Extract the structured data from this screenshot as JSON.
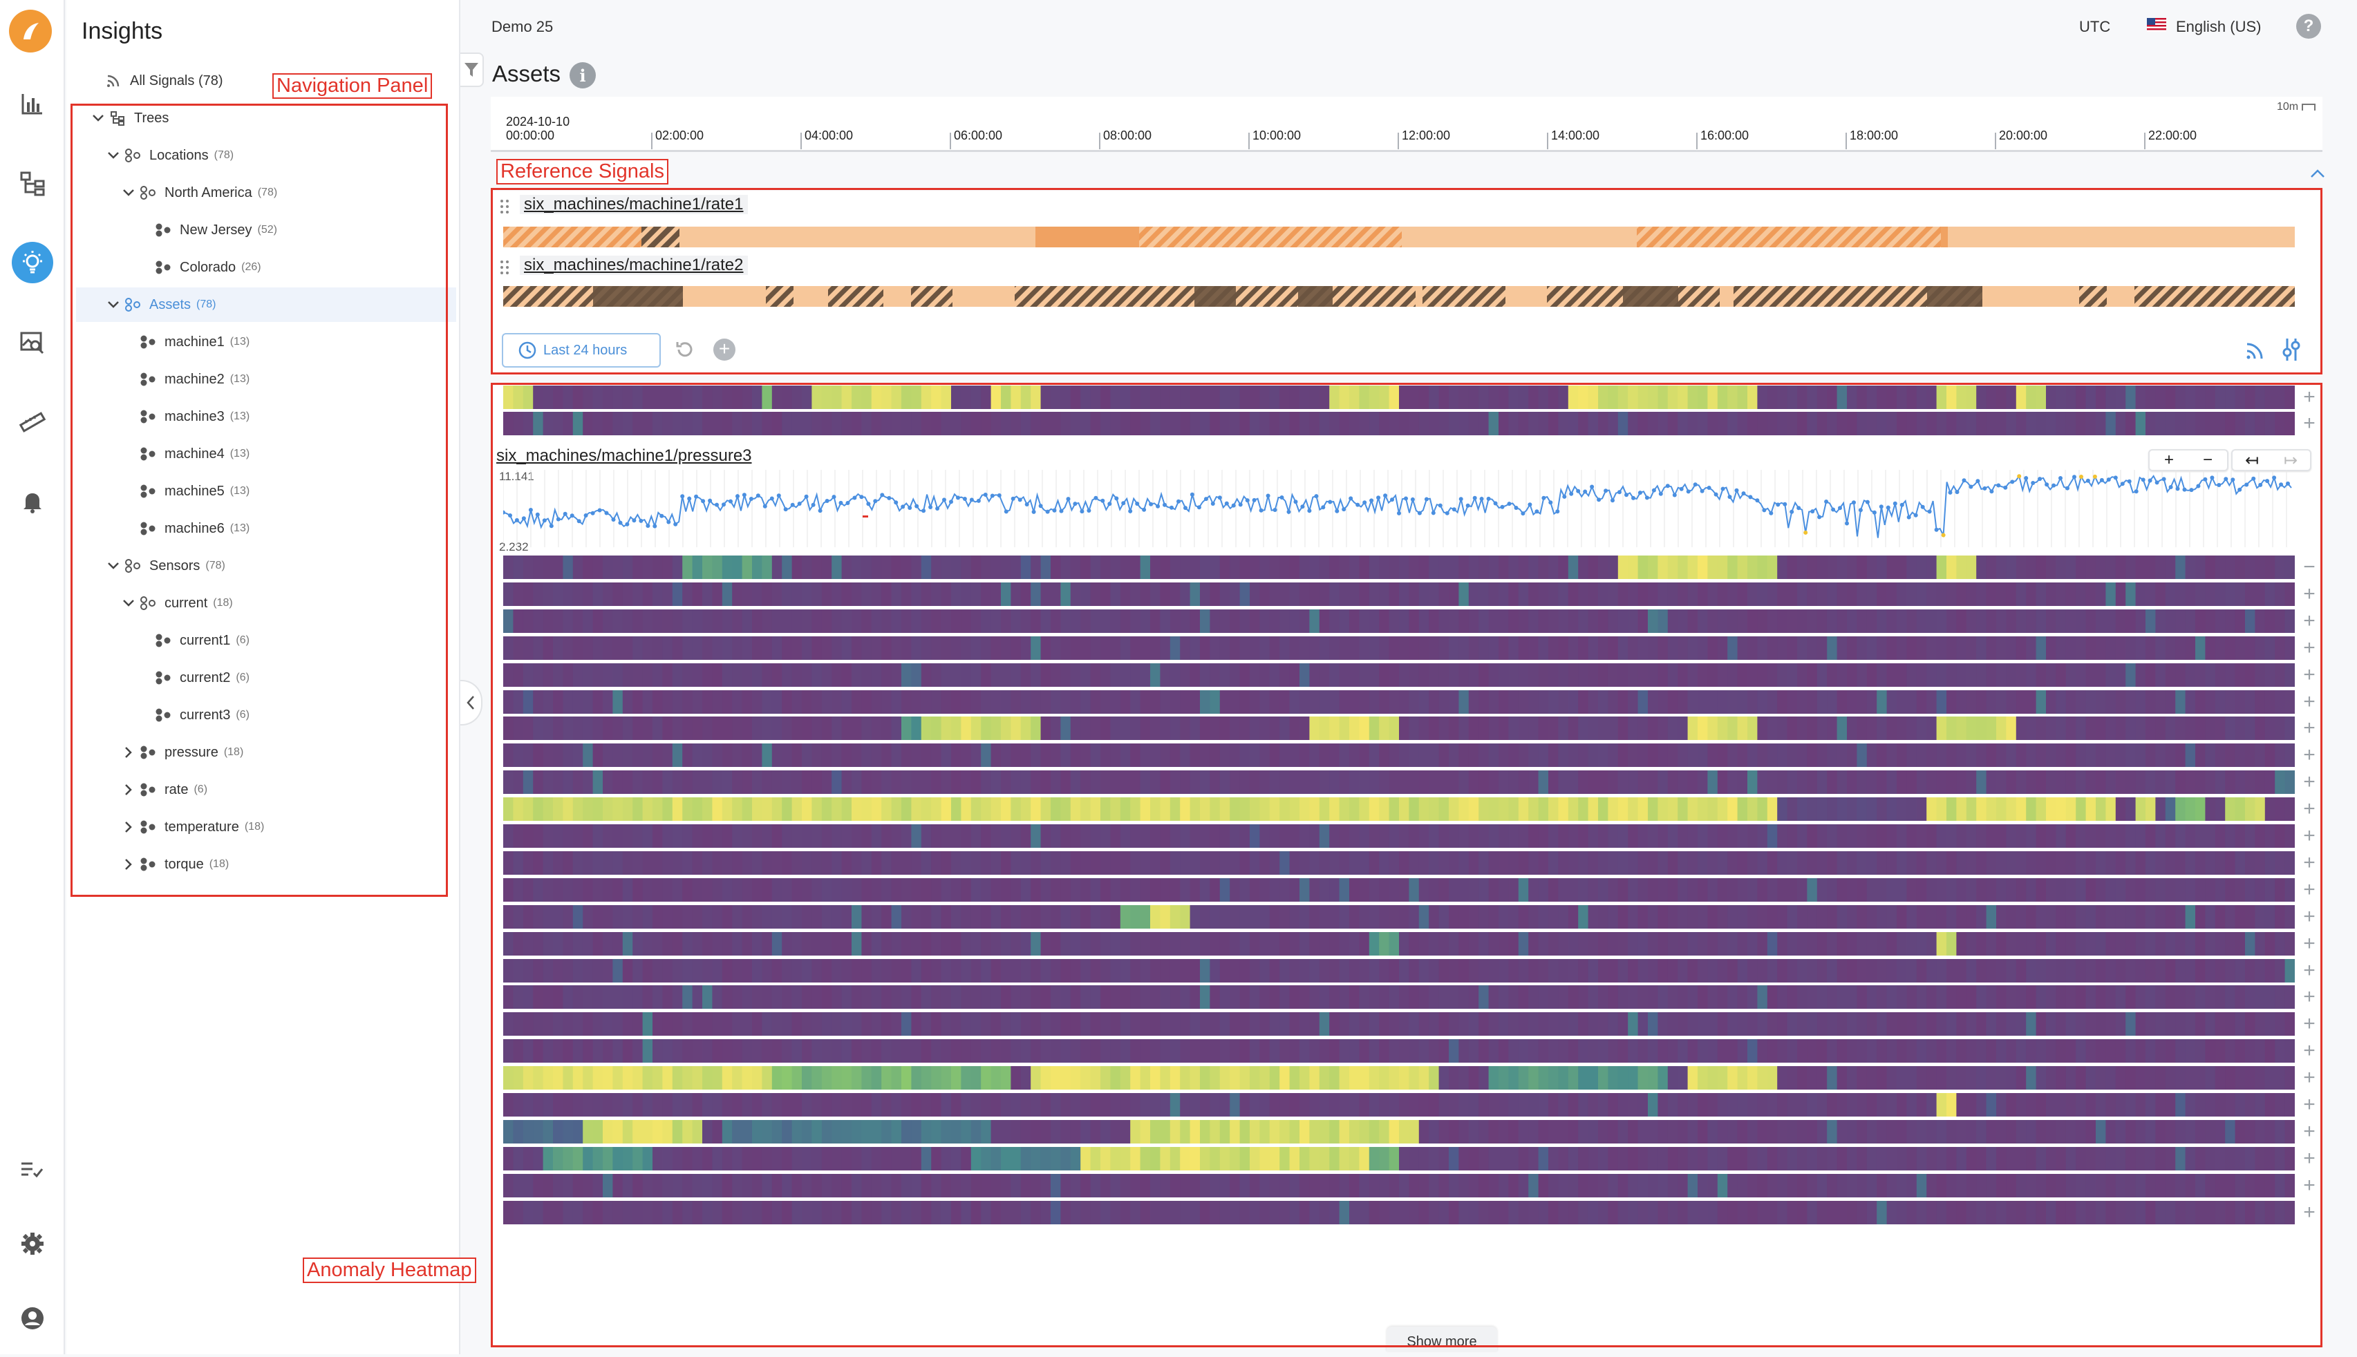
{
  "header": {
    "dataset": "Demo 25",
    "timezone": "UTC",
    "language": "English (US)",
    "help_icon": "help-icon"
  },
  "nav": {
    "title": "Insights",
    "all_signals": {
      "label": "All Signals",
      "count": "(78)"
    },
    "tree": [
      {
        "label": "Trees",
        "count": "",
        "level": 0,
        "expanded": true,
        "icon": "tree-icon"
      },
      {
        "label": "Locations",
        "count": "(78)",
        "level": 1,
        "expanded": true,
        "icon": "group-icon"
      },
      {
        "label": "North America",
        "count": "(78)",
        "level": 2,
        "expanded": true,
        "icon": "group-icon"
      },
      {
        "label": "New Jersey",
        "count": "(52)",
        "level": 3,
        "icon": "node-icon"
      },
      {
        "label": "Colorado",
        "count": "(26)",
        "level": 3,
        "icon": "node-icon"
      },
      {
        "label": "Assets",
        "count": "(78)",
        "level": 1,
        "expanded": true,
        "selected": true,
        "icon": "group-icon"
      },
      {
        "label": "machine1",
        "count": "(13)",
        "level": 2,
        "icon": "node-icon"
      },
      {
        "label": "machine2",
        "count": "(13)",
        "level": 2,
        "icon": "node-icon"
      },
      {
        "label": "machine3",
        "count": "(13)",
        "level": 2,
        "icon": "node-icon"
      },
      {
        "label": "machine4",
        "count": "(13)",
        "level": 2,
        "icon": "node-icon"
      },
      {
        "label": "machine5",
        "count": "(13)",
        "level": 2,
        "icon": "node-icon"
      },
      {
        "label": "machine6",
        "count": "(13)",
        "level": 2,
        "icon": "node-icon"
      },
      {
        "label": "Sensors",
        "count": "(78)",
        "level": 1,
        "expanded": true,
        "icon": "group-icon"
      },
      {
        "label": "current",
        "count": "(18)",
        "level": 2,
        "expanded": true,
        "icon": "group-icon"
      },
      {
        "label": "current1",
        "count": "(6)",
        "level": 3,
        "icon": "node-icon"
      },
      {
        "label": "current2",
        "count": "(6)",
        "level": 3,
        "icon": "node-icon"
      },
      {
        "label": "current3",
        "count": "(6)",
        "level": 3,
        "icon": "node-icon"
      },
      {
        "label": "pressure",
        "count": "(18)",
        "level": 2,
        "expanded": false,
        "icon": "node-icon"
      },
      {
        "label": "rate",
        "count": "(6)",
        "level": 2,
        "expanded": false,
        "icon": "node-icon"
      },
      {
        "label": "temperature",
        "count": "(18)",
        "level": 2,
        "expanded": false,
        "icon": "node-icon"
      },
      {
        "label": "torque",
        "count": "(18)",
        "level": 2,
        "expanded": false,
        "icon": "node-icon"
      }
    ]
  },
  "rail": {
    "icons": [
      "logo-icon",
      "chart-icon",
      "hierarchy-icon",
      "insights-bulb-icon",
      "image-search-icon",
      "ruler-icon",
      "bell-icon",
      "checklist-icon",
      "settings-icon",
      "account-icon"
    ]
  },
  "main": {
    "title": "Assets",
    "timeline": {
      "date": "2024-10-10",
      "ticks": [
        "00:00:00",
        "02:00:00",
        "04:00:00",
        "06:00:00",
        "08:00:00",
        "10:00:00",
        "12:00:00",
        "14:00:00",
        "16:00:00",
        "18:00:00",
        "20:00:00",
        "22:00:00"
      ],
      "resolution": "10m"
    },
    "reference_signals": [
      {
        "name": "six_machines/machine1/rate1"
      },
      {
        "name": "six_machines/machine1/rate2"
      }
    ],
    "time_range_button": "Last 24 hours",
    "expanded_signal": {
      "name": "six_machines/machine1/pressure3",
      "y_max": "11.141",
      "y_min": "2.232",
      "controls": [
        "+",
        "−",
        "↤",
        "↦"
      ]
    },
    "show_more": "Show more"
  },
  "annotations": {
    "navigation": "Navigation Panel",
    "reference": "Reference Signals",
    "heatmap": "Anomaly Heatmap"
  },
  "colors": {
    "accent": "#4a8fd8",
    "annotation": "#e2342a",
    "heat_low": "#6b3d78",
    "heat_high": "#f5e66a",
    "ref_light": "#f7c79a",
    "ref_mid": "#ef9b58",
    "ref_dark": "#6b5440",
    "line_series": "#4a8fe0"
  }
}
